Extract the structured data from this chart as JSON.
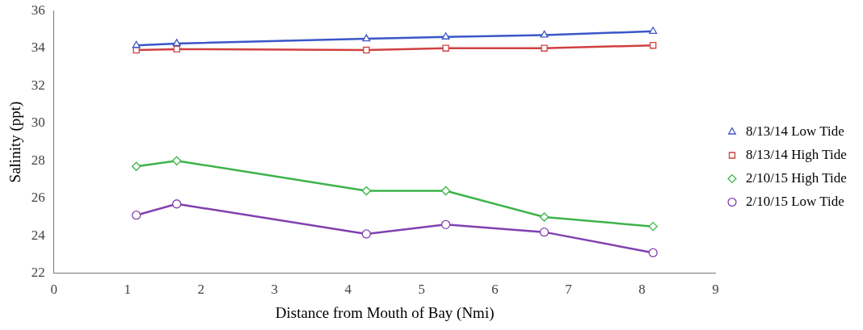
{
  "chart_data": {
    "type": "line",
    "xlabel": "Distance from Mouth of Bay (Nmi)",
    "ylabel": "Salinity (ppt)",
    "x": [
      1.12,
      1.67,
      4.25,
      5.33,
      6.67,
      8.15
    ],
    "xlim": [
      0,
      9
    ],
    "xticks": [
      0,
      1,
      2,
      3,
      4,
      5,
      6,
      7,
      8,
      9
    ],
    "ylim": [
      22,
      36
    ],
    "yticks": [
      22,
      24,
      26,
      28,
      30,
      32,
      34,
      36
    ],
    "grid": false,
    "legend": "right",
    "series": [
      {
        "name": "8/13/14 Low Tide",
        "color": "#3a56c8",
        "marker": "triangle",
        "values": [
          34.15,
          34.25,
          34.5,
          34.6,
          34.7,
          34.9
        ]
      },
      {
        "name": "8/13/14 High Tide",
        "color": "#d04040",
        "marker": "square",
        "values": [
          33.9,
          33.95,
          33.9,
          34.0,
          34.0,
          34.15
        ]
      },
      {
        "name": "2/10/15 High Tide",
        "color": "#3cb44a",
        "marker": "diamond",
        "values": [
          27.7,
          28.0,
          26.4,
          26.4,
          25.0,
          24.5
        ]
      },
      {
        "name": "2/10/15 Low Tide",
        "color": "#8040b0",
        "marker": "circle",
        "values": [
          25.1,
          25.7,
          24.1,
          24.6,
          24.2,
          23.1
        ]
      }
    ]
  }
}
